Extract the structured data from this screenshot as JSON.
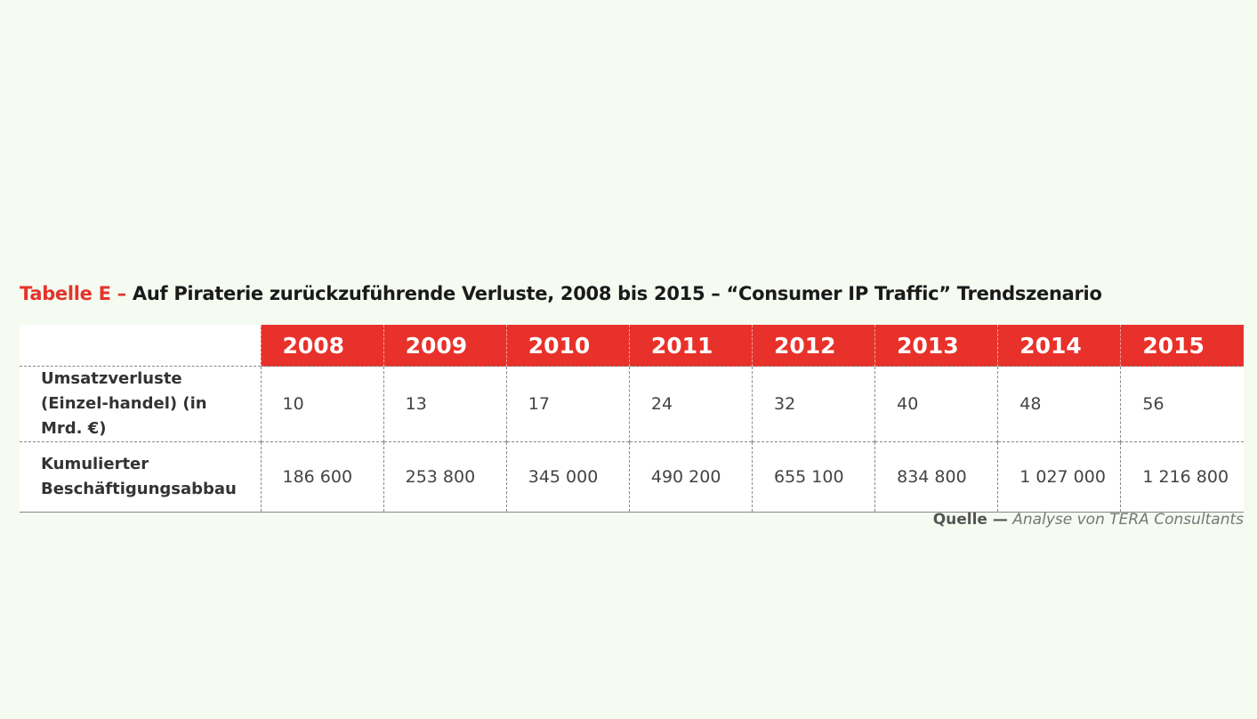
{
  "title": {
    "prefix": "Tabelle E –",
    "text": "Auf Piraterie zurückzuführende Verluste, 2008 bis 2015 – “Consumer IP Traffic” Trendszenario"
  },
  "table": {
    "header": [
      "2008",
      "2009",
      "2010",
      "2011",
      "2012",
      "2013",
      "2014",
      "2015"
    ],
    "rows": [
      {
        "label": "Umsatzverluste (Einzel-handel) (in Mrd. €)",
        "cells": [
          "10",
          "13",
          "17",
          "24",
          "32",
          "40",
          "48",
          "56"
        ]
      },
      {
        "label": "Kumulierter Beschäftigungsabbau",
        "cells": [
          "186 600",
          "253 800",
          "345 000",
          "490 200",
          "655 100",
          "834 800",
          "1 027 000",
          "1 216 800"
        ]
      }
    ]
  },
  "source": {
    "prefix": "Quelle —",
    "text": "Analyse von TERA Consultants"
  }
}
